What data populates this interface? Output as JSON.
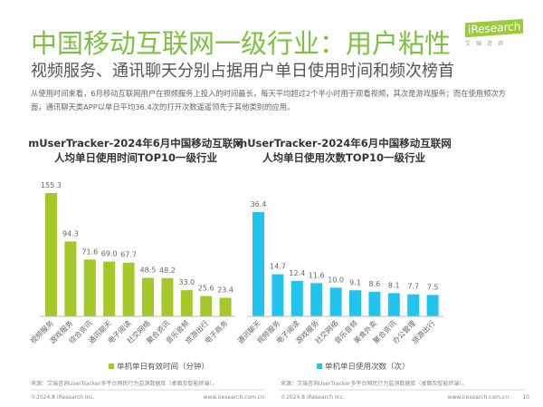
{
  "header": {
    "title": "中国移动互联网一级行业：用户粘性",
    "subtitle": "视频服务、通讯聊天分别占据用户单日使用时间和频次榜首",
    "description": "从使用时间来看，6月移动互联网用户在视频服务上投入的时间最长，每天平均超过2个半小时用于观看视频，其次是游戏服务；而在使用频次方面，通讯聊天类APP以单日平均36.4次的打开次数遥遥领先于其他类别的应用。",
    "logo_brand": "iResearch",
    "logo_sub": "艾瑞咨询"
  },
  "chart_data": [
    {
      "type": "bar",
      "title_line1": "mUserTracker-2024年6月中国移动互联网",
      "title_line2": "人均单日使用时间TOP10一级行业",
      "categories": [
        "视频服务",
        "游戏服务",
        "综合资讯",
        "通讯聊天",
        "电子阅读",
        "社交网络",
        "聚合资讯",
        "音乐音频",
        "旅游出行",
        "电子商务"
      ],
      "series": [
        {
          "name": "单机单日有效时间（分钟）",
          "values": [
            155.3,
            94.3,
            71.6,
            69.0,
            67.7,
            48.5,
            48.2,
            33.0,
            25.6,
            23.4
          ]
        }
      ],
      "ylim": [
        0,
        160
      ],
      "grid": false,
      "legend": "bottom",
      "color": "#a3c828"
    },
    {
      "type": "bar",
      "title_line1": "mUserTracker-2024年6月中国移动互联网",
      "title_line2": "人均单日使用次数TOP10一级行业",
      "categories": [
        "通讯聊天",
        "视频服务",
        "电子阅读",
        "游戏服务",
        "社交网络",
        "音乐音频",
        "美食外卖",
        "聚合资讯",
        "办公管理",
        "旅游出行"
      ],
      "series": [
        {
          "name": "单机单日使用次数（次）",
          "values": [
            36.4,
            14.7,
            12.4,
            11.6,
            10.0,
            9.1,
            8.6,
            8.1,
            7.7,
            7.5
          ]
        }
      ],
      "ylim": [
        0,
        40
      ],
      "grid": false,
      "legend": "bottom",
      "color": "#22c4ee"
    }
  ],
  "footer": {
    "source_left": "来源：艾瑞咨询UserTracker多平台网民行为监测数据库（桌面及智能终端）。",
    "source_right": "来源：艾瑞咨询UserTracker多平台网民行为监测数据库（桌面及智能终端）。",
    "copyright_left": "©2024.8 iResearch Inc.",
    "url_left": "www.iresearch.com.cn",
    "copyright_right": "©2024.8 iResearch Inc.",
    "url_right": "www.iresearch.com.cn",
    "page_number": "10"
  }
}
